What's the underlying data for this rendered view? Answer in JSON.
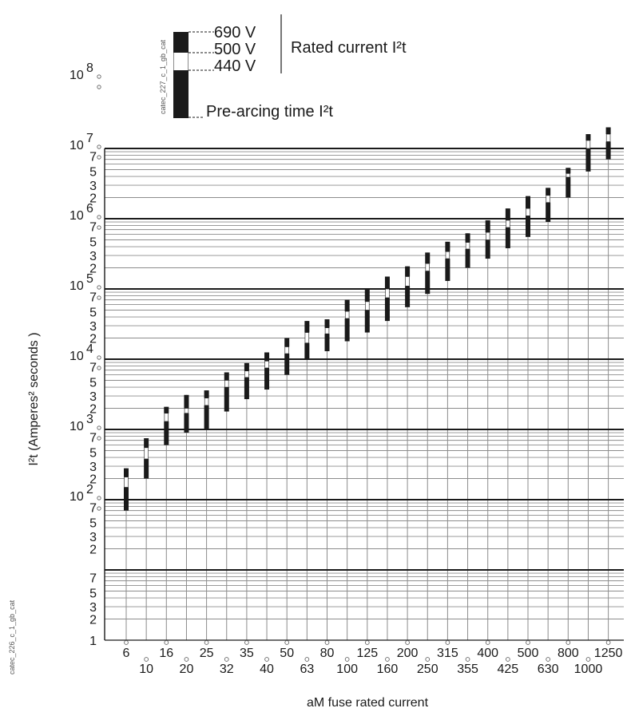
{
  "chart_data": {
    "type": "bar",
    "chart_kind": "range-bar (I²t per fuse rating)",
    "xlabel": "aM fuse rated current",
    "ylabel": "I²t (Amperes² seconds )",
    "y_scale": "log",
    "ylim": [
      1,
      100000000
    ],
    "grid": true,
    "legend_placement": "top-center",
    "y_tick_labels": {
      "decades": [
        "10",
        "10",
        "10",
        "10",
        "10",
        "10",
        "10"
      ],
      "decade_exponents": [
        "2",
        "3",
        "4",
        "5",
        "6",
        "7",
        "8"
      ],
      "decade_values": [
        100,
        1000,
        10000,
        100000,
        1000000,
        10000000,
        100000000
      ],
      "one": "1",
      "minor": [
        "2",
        "3",
        "5",
        "7"
      ]
    },
    "legend": {
      "voltages": [
        "690 V",
        "500 V",
        "440 V"
      ],
      "rated_label": "Rated current I²t",
      "prearc_label": "Pre-arcing time I²t",
      "image_code": "catec_227_c_1_gb_cat"
    },
    "categories": [
      "6",
      "10",
      "16",
      "20",
      "25",
      "32",
      "35",
      "40",
      "50",
      "63",
      "80",
      "100",
      "125",
      "160",
      "200",
      "250",
      "315",
      "355",
      "400",
      "425",
      "500",
      "630",
      "800",
      "1000",
      "1250"
    ],
    "series": [
      {
        "name": "Pre-arcing time I²t",
        "values": [
          70,
          200,
          600,
          900,
          1000,
          1800,
          2700,
          3700,
          6000,
          10000,
          13000,
          18000,
          24000,
          35000,
          55000,
          85000,
          130000,
          200000,
          270000,
          380000,
          550000,
          900000,
          2000000,
          4700000,
          7000000
        ]
      },
      {
        "name": "440 V",
        "values": [
          150,
          380,
          1300,
          1700,
          2200,
          4000,
          5500,
          7500,
          12000,
          17000,
          23000,
          38000,
          50000,
          75000,
          110000,
          180000,
          270000,
          370000,
          500000,
          750000,
          1100000,
          1700000,
          3900000,
          10000000,
          12500000
        ]
      },
      {
        "name": "500 V",
        "values": [
          210,
          550,
          1700,
          2000,
          2800,
          5000,
          6800,
          9400,
          15000,
          24000,
          28000,
          48000,
          66000,
          100000,
          150000,
          230000,
          340000,
          460000,
          640000,
          950000,
          1400000,
          2150000,
          4400000,
          13000000,
          16000000
        ]
      },
      {
        "name": "690 V",
        "values": [
          280,
          750,
          2100,
          3100,
          3600,
          6500,
          8800,
          12500,
          20000,
          35000,
          37000,
          70000,
          100000,
          150000,
          210000,
          330000,
          470000,
          620000,
          950000,
          1400000,
          2100000,
          2750000,
          5300000,
          16000000,
          20000000
        ]
      }
    ]
  },
  "side_code": "catec_226_c_1_gb_cat"
}
